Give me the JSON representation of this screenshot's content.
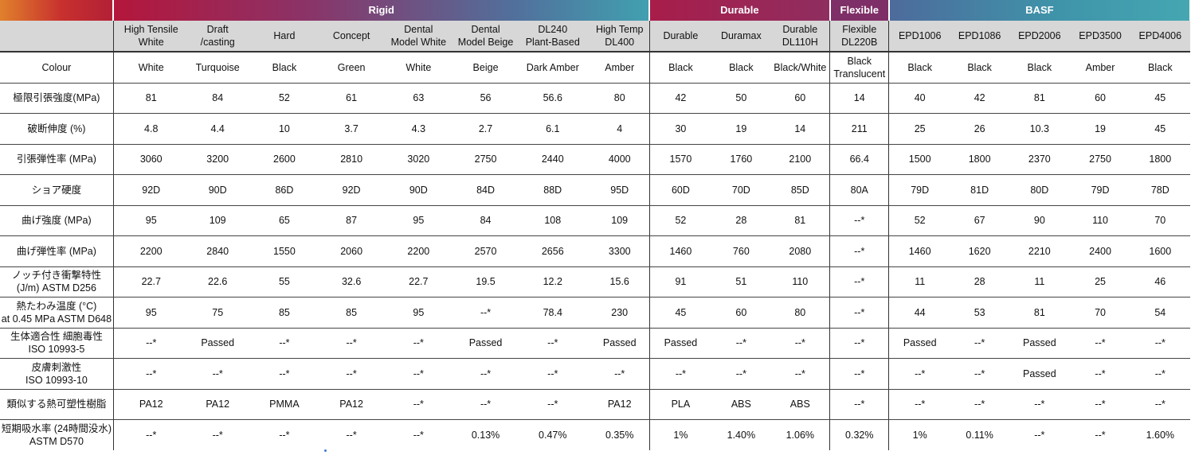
{
  "groups": [
    "Rigid",
    "Durable",
    "Flexible",
    "BASF"
  ],
  "materials": [
    "High Tensile\nWhite",
    "Draft\n/casting",
    "Hard",
    "Concept",
    "Dental\nModel White",
    "Dental\nModel Beige",
    "DL240\nPlant-Based",
    "High Temp\nDL400",
    "Durable",
    "Duramax",
    "Durable\nDL110H",
    "Flexible\nDL220B",
    "EPD1006",
    "EPD1086",
    "EPD2006",
    "EPD3500",
    "EPD4006"
  ],
  "rows": [
    {
      "label": "Colour",
      "values": [
        "White",
        "Turquoise",
        "Black",
        "Green",
        "White",
        "Beige",
        "Dark Amber",
        "Amber",
        "Black",
        "Black",
        "Black/White",
        "Black\nTranslucent",
        "Black",
        "Black",
        "Black",
        "Amber",
        "Black"
      ]
    },
    {
      "label": "極限引張強度(MPa)",
      "values": [
        "81",
        "84",
        "52",
        "61",
        "63",
        "56",
        "56.6",
        "80",
        "42",
        "50",
        "60",
        "14",
        "40",
        "42",
        "81",
        "60",
        "45"
      ]
    },
    {
      "label": "破断伸度 (%)",
      "values": [
        "4.8",
        "4.4",
        "10",
        "3.7",
        "4.3",
        "2.7",
        "6.1",
        "4",
        "30",
        "19",
        "14",
        "211",
        "25",
        "26",
        "10.3",
        "19",
        "45"
      ]
    },
    {
      "label": "引張弾性率 (MPa)",
      "values": [
        "3060",
        "3200",
        "2600",
        "2810",
        "3020",
        "2750",
        "2440",
        "4000",
        "1570",
        "1760",
        "2100",
        "66.4",
        "1500",
        "1800",
        "2370",
        "2750",
        "1800"
      ]
    },
    {
      "label": "ショア硬度",
      "values": [
        "92D",
        "90D",
        "86D",
        "92D",
        "90D",
        "84D",
        "88D",
        "95D",
        "60D",
        "70D",
        "85D",
        "80A",
        "79D",
        "81D",
        "80D",
        "79D",
        "78D"
      ]
    },
    {
      "label": "曲げ強度 (MPa)",
      "values": [
        "95",
        "109",
        "65",
        "87",
        "95",
        "84",
        "108",
        "109",
        "52",
        "28",
        "81",
        "--*",
        "52",
        "67",
        "90",
        "110",
        "70"
      ]
    },
    {
      "label": "曲げ弾性率 (MPa)",
      "values": [
        "2200",
        "2840",
        "1550",
        "2060",
        "2200",
        "2570",
        "2656",
        "3300",
        "1460",
        "760",
        "2080",
        "--*",
        "1460",
        "1620",
        "2210",
        "2400",
        "1600"
      ]
    },
    {
      "label": "ノッチ付き衝撃特性\n(J/m) ASTM D256",
      "values": [
        "22.7",
        "22.6",
        "55",
        "32.6",
        "22.7",
        "19.5",
        "12.2",
        "15.6",
        "91",
        "51",
        "110",
        "--*",
        "11",
        "28",
        "11",
        "25",
        "46"
      ]
    },
    {
      "label": "熱たわみ温度 (°C)\nat 0.45 MPa ASTM D648",
      "values": [
        "95",
        "75",
        "85",
        "85",
        "95",
        "--*",
        "78.4",
        "230",
        "45",
        "60",
        "80",
        "--*",
        "44",
        "53",
        "81",
        "70",
        "54"
      ]
    },
    {
      "label": "生体適合性 細胞毒性\nISO 10993-5",
      "values": [
        "--*",
        "Passed",
        "--*",
        "--*",
        "--*",
        "Passed",
        "--*",
        "Passed",
        "Passed",
        "--*",
        "--*",
        "--*",
        "Passed",
        "--*",
        "Passed",
        "--*",
        "--*"
      ]
    },
    {
      "label": "皮膚刺激性\nISO 10993-10",
      "values": [
        "--*",
        "--*",
        "--*",
        "--*",
        "--*",
        "--*",
        "--*",
        "--*",
        "--*",
        "--*",
        "--*",
        "--*",
        "--*",
        "--*",
        "Passed",
        "--*",
        "--*"
      ]
    },
    {
      "label": "類似する熱可塑性樹脂",
      "values": [
        "PA12",
        "PA12",
        "PMMA",
        "PA12",
        "--*",
        "--*",
        "--*",
        "PA12",
        "PLA",
        "ABS",
        "ABS",
        "--*",
        "--*",
        "--*",
        "--*",
        "--*",
        "--*"
      ]
    },
    {
      "label": "短期吸水率 (24時間没水)\nASTM D570",
      "values": [
        "--*",
        "--*",
        "--*",
        "--*",
        "--*",
        "0.13%",
        "0.47%",
        "0.35%",
        "1%",
        "1.40%",
        "1.06%",
        "0.32%",
        "1%",
        "0.11%",
        "--*",
        "--*",
        "1.60%"
      ]
    }
  ]
}
